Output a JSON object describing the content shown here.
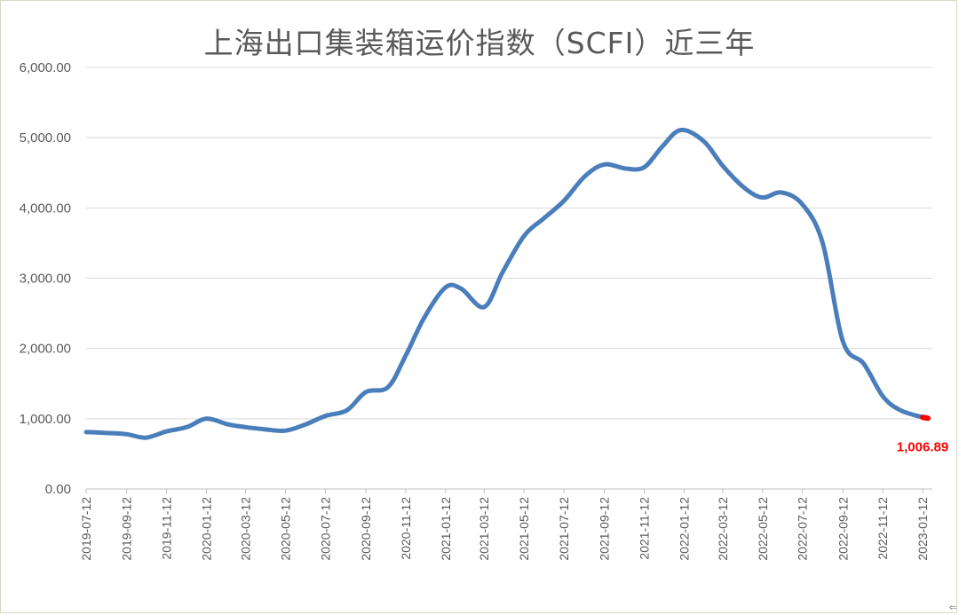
{
  "chart_data": {
    "type": "line",
    "title": "上海出口集装箱运价指数（SCFI）近三年",
    "ylim": [
      0,
      6000
    ],
    "grid": true,
    "legend": "none",
    "y_tick_labels": [
      "0.00",
      "1,000.00",
      "2,000.00",
      "3,000.00",
      "4,000.00",
      "5,000.00",
      "6,000.00"
    ],
    "x_tick_labels": [
      "2019-07-12",
      "2019-09-12",
      "2019-11-12",
      "2020-01-12",
      "2020-03-12",
      "2020-05-12",
      "2020-07-12",
      "2020-09-12",
      "2020-11-12",
      "2021-01-12",
      "2021-03-12",
      "2021-05-12",
      "2021-07-12",
      "2021-09-12",
      "2021-11-12",
      "2022-01-12",
      "2022-03-12",
      "2022-05-12",
      "2022-07-12",
      "2022-09-12",
      "2022-11-12",
      "2023-01-12"
    ],
    "series_color": "#4a7ebb",
    "highlight_color": "#ff0000",
    "last_value_label": "1,006.89",
    "series": [
      {
        "x": [
          "2019-07-12",
          "2019-08-09",
          "2019-09-12",
          "2019-10-11",
          "2019-11-12",
          "2019-12-13",
          "2020-01-12",
          "2020-02-14",
          "2020-03-12",
          "2020-04-10",
          "2020-05-12",
          "2020-06-12",
          "2020-07-12",
          "2020-08-14",
          "2020-09-12",
          "2020-10-16",
          "2020-11-12",
          "2020-12-11",
          "2021-01-12",
          "2021-02-05",
          "2021-03-12",
          "2021-04-09",
          "2021-05-12",
          "2021-06-11",
          "2021-07-12",
          "2021-08-13",
          "2021-09-12",
          "2021-10-15",
          "2021-11-12",
          "2021-12-10",
          "2022-01-07",
          "2022-02-11",
          "2022-03-12",
          "2022-04-15",
          "2022-05-12",
          "2022-06-10",
          "2022-07-12",
          "2022-08-12",
          "2022-09-12",
          "2022-10-14",
          "2022-11-12",
          "2022-12-09",
          "2023-01-12",
          "2023-01-20"
        ],
        "values": [
          810,
          800,
          780,
          730,
          820,
          880,
          1000,
          920,
          880,
          850,
          830,
          920,
          1040,
          1120,
          1380,
          1450,
          1900,
          2450,
          2870,
          2850,
          2590,
          3080,
          3600,
          3850,
          4100,
          4450,
          4620,
          4560,
          4580,
          4880,
          5110,
          4950,
          4600,
          4280,
          4150,
          4220,
          4050,
          3500,
          2100,
          1780,
          1320,
          1120,
          1020,
          1006.89
        ]
      }
    ]
  }
}
